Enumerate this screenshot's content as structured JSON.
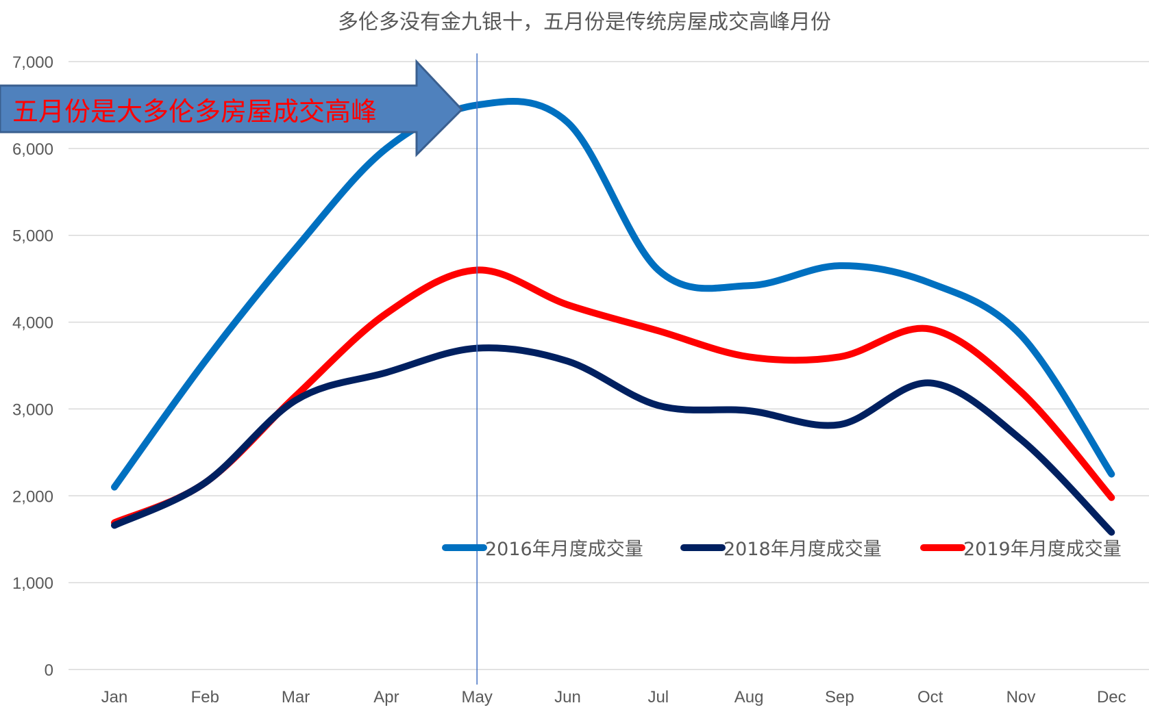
{
  "chart_data": {
    "type": "line",
    "title": "多伦多没有金九银十，五月份是传统房屋成交高峰月份",
    "categories": [
      "Jan",
      "Feb",
      "Mar",
      "Apr",
      "May",
      "Jun",
      "Jul",
      "Aug",
      "Sep",
      "Oct",
      "Nov",
      "Dec"
    ],
    "ylim": [
      0,
      7000
    ],
    "yticks": [
      0,
      1000,
      2000,
      3000,
      4000,
      5000,
      6000,
      7000
    ],
    "ytick_labels": [
      "0",
      "1,000",
      "2,000",
      "3,000",
      "4,000",
      "5,000",
      "6,000",
      "7,000"
    ],
    "grid": true,
    "smooth": true,
    "series": [
      {
        "name": "2016年月度成交量",
        "color": "#0070C0",
        "values": [
          2100,
          3550,
          4850,
          6000,
          6500,
          6300,
          4600,
          4420,
          4650,
          4450,
          3850,
          2250
        ]
      },
      {
        "name": "2018年月度成交量",
        "color": "#002060",
        "values": [
          1660,
          2150,
          3100,
          3420,
          3700,
          3550,
          3040,
          2980,
          2820,
          3300,
          2650,
          1580
        ]
      },
      {
        "name": "2019年月度成交量",
        "color": "#FF0000",
        "values": [
          1690,
          2150,
          3150,
          4100,
          4600,
          4200,
          3900,
          3600,
          3600,
          3920,
          3200,
          1980
        ]
      }
    ],
    "legend_position": "inside-middle-right",
    "marker_line": {
      "category": "May",
      "color": "#4472C4"
    },
    "annotation": {
      "text": "五月份是大多伦多房屋成交高峰",
      "color": "#FF0000",
      "arrow_color": "#4F81BD"
    }
  }
}
